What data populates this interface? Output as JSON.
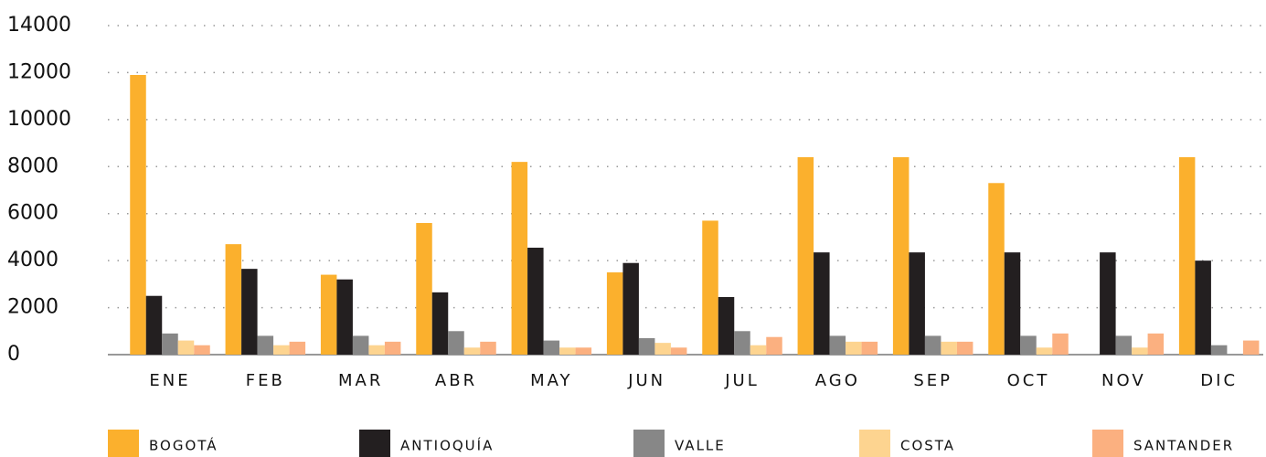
{
  "chart_data": {
    "type": "bar",
    "categories": [
      "ENE",
      "FEB",
      "MAR",
      "ABR",
      "MAY",
      "JUN",
      "JUL",
      "AGO",
      "SEP",
      "OCT",
      "NOV",
      "DIC"
    ],
    "series": [
      {
        "name": "BOGOTÁ",
        "color": "#fbb02d",
        "values": [
          11900,
          4700,
          3400,
          5600,
          8200,
          3500,
          5700,
          8400,
          8400,
          7300,
          0,
          8400
        ]
      },
      {
        "name": "ANTIOQUÍA",
        "color": "#231f20",
        "values": [
          2500,
          3650,
          3200,
          2650,
          4550,
          3900,
          2450,
          4350,
          4350,
          4350,
          4350,
          4000
        ]
      },
      {
        "name": "VALLE",
        "color": "#878787",
        "values": [
          900,
          800,
          800,
          1000,
          600,
          700,
          1000,
          800,
          800,
          800,
          800,
          400
        ]
      },
      {
        "name": "COSTA",
        "color": "#fdd490",
        "values": [
          600,
          400,
          400,
          300,
          300,
          500,
          400,
          550,
          550,
          300,
          300,
          0
        ]
      },
      {
        "name": "SANTANDER",
        "color": "#fbb080",
        "values": [
          400,
          550,
          550,
          550,
          300,
          300,
          750,
          550,
          550,
          900,
          900,
          600
        ]
      }
    ],
    "ylim": [
      0,
      14000
    ],
    "yticks": [
      0,
      2000,
      4000,
      6000,
      8000,
      10000,
      12000,
      14000
    ],
    "grid": true,
    "legend": "bottom"
  }
}
